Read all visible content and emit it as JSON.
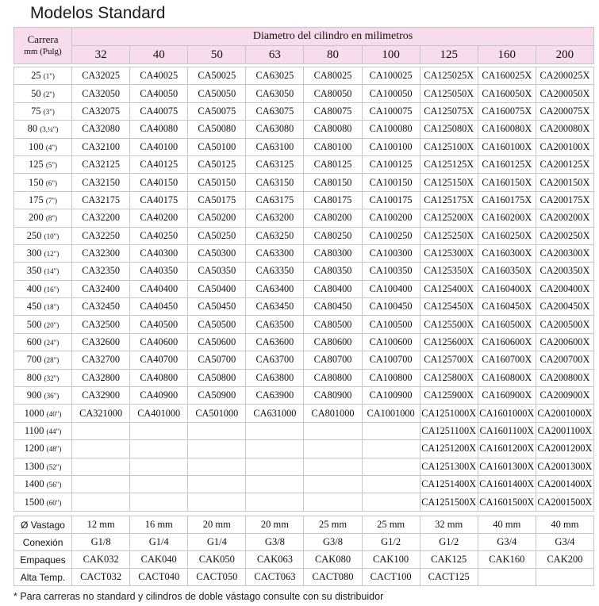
{
  "page_title": "Modelos Standard",
  "header": {
    "carrera_label": "Carrera",
    "units_label": "mm (Pulg)",
    "diameter_label": "Diametro del cilindro en milimetros",
    "diameters": [
      "32",
      "40",
      "50",
      "63",
      "80",
      "100",
      "125",
      "160",
      "200"
    ]
  },
  "rows": [
    {
      "mm": "25",
      "inch": "(1\")",
      "cells": [
        "CA32025",
        "CA40025",
        "CA50025",
        "CA63025",
        "CA80025",
        "CA100025",
        "CA125025X",
        "CA160025X",
        "CA200025X"
      ]
    },
    {
      "mm": "50",
      "inch": "(2\")",
      "cells": [
        "CA32050",
        "CA40050",
        "CA50050",
        "CA63050",
        "CA80050",
        "CA100050",
        "CA125050X",
        "CA160050X",
        "CA200050X"
      ]
    },
    {
      "mm": "75",
      "inch": "(3\")",
      "cells": [
        "CA32075",
        "CA40075",
        "CA50075",
        "CA63075",
        "CA80075",
        "CA100075",
        "CA125075X",
        "CA160075X",
        "CA200075X"
      ]
    },
    {
      "mm": "80",
      "inch": "(3,¼\")",
      "cells": [
        "CA32080",
        "CA40080",
        "CA50080",
        "CA63080",
        "CA80080",
        "CA100080",
        "CA125080X",
        "CA160080X",
        "CA200080X"
      ]
    },
    {
      "mm": "100",
      "inch": "(4\")",
      "cells": [
        "CA32100",
        "CA40100",
        "CA50100",
        "CA63100",
        "CA80100",
        "CA100100",
        "CA125100X",
        "CA160100X",
        "CA200100X"
      ]
    },
    {
      "mm": "125",
      "inch": "(5\")",
      "cells": [
        "CA32125",
        "CA40125",
        "CA50125",
        "CA63125",
        "CA80125",
        "CA100125",
        "CA125125X",
        "CA160125X",
        "CA200125X"
      ]
    },
    {
      "mm": "150",
      "inch": "(6\")",
      "cells": [
        "CA32150",
        "CA40150",
        "CA50150",
        "CA63150",
        "CA80150",
        "CA100150",
        "CA125150X",
        "CA160150X",
        "CA200150X"
      ]
    },
    {
      "mm": "175",
      "inch": "(7\")",
      "cells": [
        "CA32175",
        "CA40175",
        "CA50175",
        "CA63175",
        "CA80175",
        "CA100175",
        "CA125175X",
        "CA160175X",
        "CA200175X"
      ]
    },
    {
      "mm": "200",
      "inch": "(8\")",
      "cells": [
        "CA32200",
        "CA40200",
        "CA50200",
        "CA63200",
        "CA80200",
        "CA100200",
        "CA125200X",
        "CA160200X",
        "CA200200X"
      ]
    },
    {
      "mm": "250",
      "inch": "(10\")",
      "cells": [
        "CA32250",
        "CA40250",
        "CA50250",
        "CA63250",
        "CA80250",
        "CA100250",
        "CA125250X",
        "CA160250X",
        "CA200250X"
      ]
    },
    {
      "mm": "300",
      "inch": "(12\")",
      "cells": [
        "CA32300",
        "CA40300",
        "CA50300",
        "CA63300",
        "CA80300",
        "CA100300",
        "CA125300X",
        "CA160300X",
        "CA200300X"
      ]
    },
    {
      "mm": "350",
      "inch": "(14\")",
      "cells": [
        "CA32350",
        "CA40350",
        "CA50350",
        "CA63350",
        "CA80350",
        "CA100350",
        "CA125350X",
        "CA160350X",
        "CA200350X"
      ]
    },
    {
      "mm": "400",
      "inch": "(16\")",
      "cells": [
        "CA32400",
        "CA40400",
        "CA50400",
        "CA63400",
        "CA80400",
        "CA100400",
        "CA125400X",
        "CA160400X",
        "CA200400X"
      ]
    },
    {
      "mm": "450",
      "inch": "(18\")",
      "cells": [
        "CA32450",
        "CA40450",
        "CA50450",
        "CA63450",
        "CA80450",
        "CA100450",
        "CA125450X",
        "CA160450X",
        "CA200450X"
      ]
    },
    {
      "mm": "500",
      "inch": "(20\")",
      "cells": [
        "CA32500",
        "CA40500",
        "CA50500",
        "CA63500",
        "CA80500",
        "CA100500",
        "CA125500X",
        "CA160500X",
        "CA200500X"
      ]
    },
    {
      "mm": "600",
      "inch": "(24\")",
      "cells": [
        "CA32600",
        "CA40600",
        "CA50600",
        "CA63600",
        "CA80600",
        "CA100600",
        "CA125600X",
        "CA160600X",
        "CA200600X"
      ]
    },
    {
      "mm": "700",
      "inch": "(28\")",
      "cells": [
        "CA32700",
        "CA40700",
        "CA50700",
        "CA63700",
        "CA80700",
        "CA100700",
        "CA125700X",
        "CA160700X",
        "CA200700X"
      ]
    },
    {
      "mm": "800",
      "inch": "(32\")",
      "cells": [
        "CA32800",
        "CA40800",
        "CA50800",
        "CA63800",
        "CA80800",
        "CA100800",
        "CA125800X",
        "CA160800X",
        "CA200800X"
      ]
    },
    {
      "mm": "900",
      "inch": "(36\")",
      "cells": [
        "CA32900",
        "CA40900",
        "CA50900",
        "CA63900",
        "CA80900",
        "CA100900",
        "CA125900X",
        "CA160900X",
        "CA200900X"
      ]
    },
    {
      "mm": "1000",
      "inch": "(40\")",
      "cells": [
        "CA321000",
        "CA401000",
        "CA501000",
        "CA631000",
        "CA801000",
        "CA1001000",
        "CA1251000X",
        "CA1601000X",
        "CA2001000X"
      ]
    },
    {
      "mm": "1100",
      "inch": "(44\")",
      "cells": [
        "",
        "",
        "",
        "",
        "",
        "",
        "CA1251100X",
        "CA1601100X",
        "CA2001100X"
      ]
    },
    {
      "mm": "1200",
      "inch": "(48\")",
      "cells": [
        "",
        "",
        "",
        "",
        "",
        "",
        "CA1251200X",
        "CA1601200X",
        "CA2001200X"
      ]
    },
    {
      "mm": "1300",
      "inch": "(52\")",
      "cells": [
        "",
        "",
        "",
        "",
        "",
        "",
        "CA1251300X",
        "CA1601300X",
        "CA2001300X"
      ]
    },
    {
      "mm": "1400",
      "inch": "(56\")",
      "cells": [
        "",
        "",
        "",
        "",
        "",
        "",
        "CA1251400X",
        "CA1601400X",
        "CA2001400X"
      ]
    },
    {
      "mm": "1500",
      "inch": "(60\")",
      "cells": [
        "",
        "",
        "",
        "",
        "",
        "",
        "CA1251500X",
        "CA1601500X",
        "CA2001500X"
      ]
    }
  ],
  "specs": [
    {
      "label": "Ø Vastago",
      "values": [
        "12 mm",
        "16 mm",
        "20 mm",
        "20 mm",
        "25 mm",
        "25 mm",
        "32 mm",
        "40 mm",
        "40 mm"
      ]
    },
    {
      "label": "Conexión",
      "values": [
        "G1/8",
        "G1/4",
        "G1/4",
        "G3/8",
        "G3/8",
        "G1/2",
        "G1/2",
        "G3/4",
        "G3/4"
      ]
    },
    {
      "label": "Empaques",
      "values": [
        "CAK032",
        "CAK040",
        "CAK050",
        "CAK063",
        "CAK080",
        "CAK100",
        "CAK125",
        "CAK160",
        "CAK200"
      ]
    },
    {
      "label": "Alta Temp.",
      "values": [
        "CACT032",
        "CACT040",
        "CACT050",
        "CACT063",
        "CACT080",
        "CACT100",
        "CACT125",
        "",
        ""
      ]
    }
  ],
  "footnote": "* Para carreras no standard y cilindros de doble vástago consulte con su distribuidor",
  "colors": {
    "header_pink": "#f6dcec",
    "grid": "#c9c4c9"
  }
}
